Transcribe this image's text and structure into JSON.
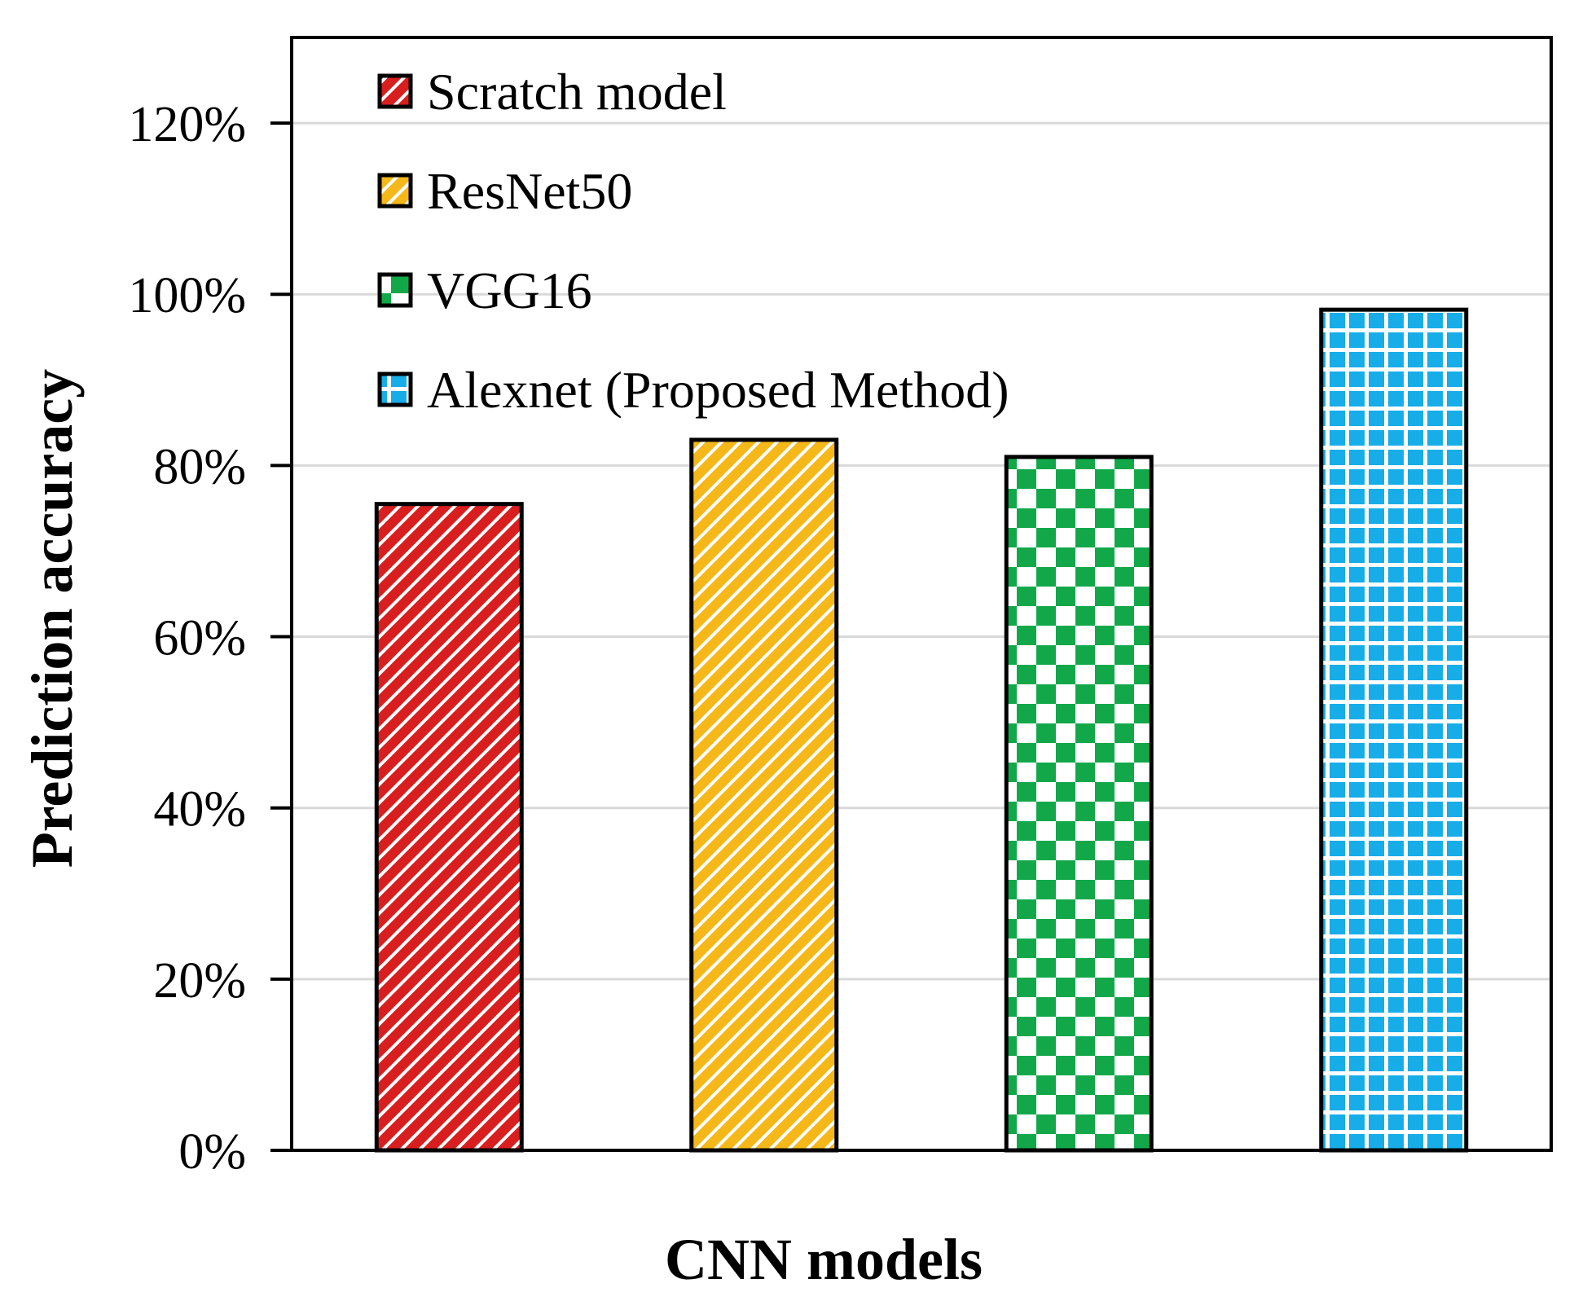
{
  "chart_data": {
    "type": "bar",
    "title": "",
    "xlabel": "CNN models",
    "ylabel": "Prediction accuracy",
    "ylim": [
      0,
      130
    ],
    "yticks": [
      0,
      20,
      40,
      60,
      80,
      100,
      120
    ],
    "ytick_labels": [
      "0%",
      "20%",
      "40%",
      "60%",
      "80%",
      "100%",
      "120%"
    ],
    "grid": true,
    "legend_position": "top-left",
    "categories": [
      "Scratch model",
      "ResNet50",
      "VGG16",
      "Alexnet (Proposed Method)"
    ],
    "series": [
      {
        "name": "Scratch model",
        "value": 75.5,
        "color": "#d81e1e",
        "pattern": "diagonal-stripes"
      },
      {
        "name": "ResNet50",
        "value": 83,
        "color": "#f6b819",
        "pattern": "diagonal-stripes"
      },
      {
        "name": "VGG16",
        "value": 81,
        "color": "#12a84a",
        "pattern": "checkerboard"
      },
      {
        "name": "Alexnet (Proposed Method)",
        "value": 98.2,
        "color": "#17ade8",
        "pattern": "grid"
      }
    ]
  }
}
